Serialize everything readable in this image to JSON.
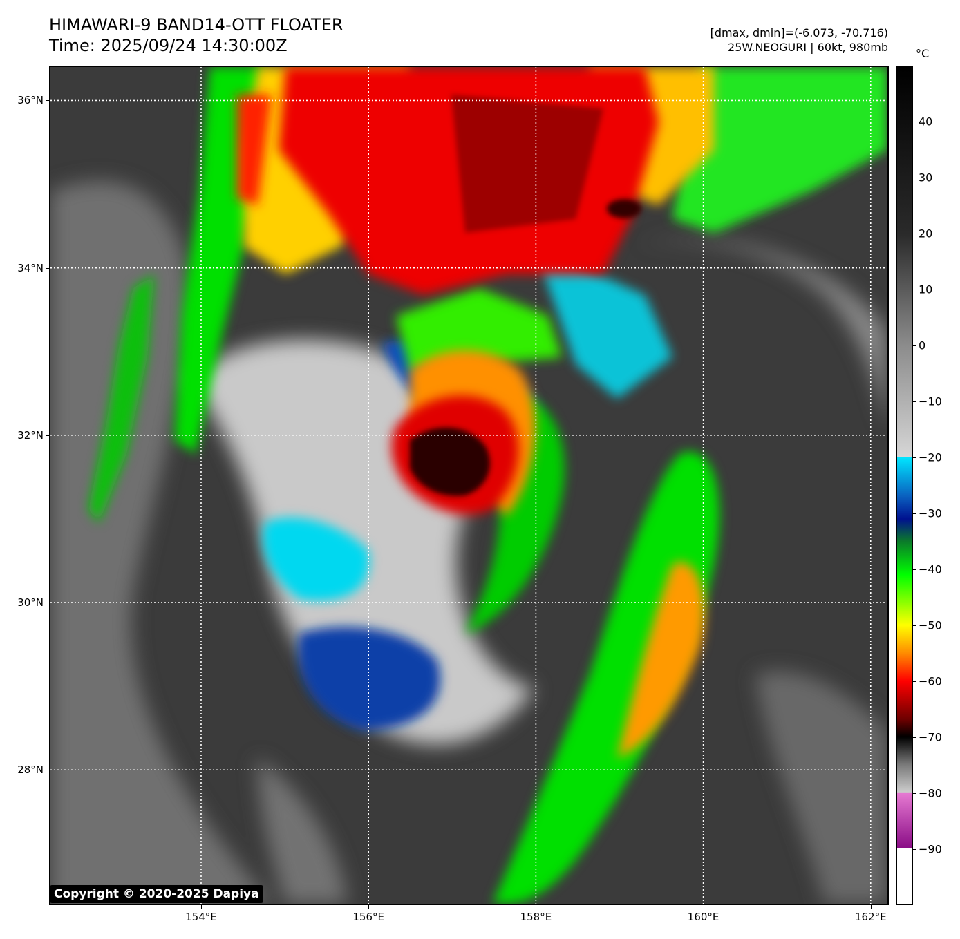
{
  "title_line1": "HIMAWARI-9 BAND14-OTT FLOATER",
  "title_line2": "Time: 2025/09/24 14:30:00Z",
  "meta_line1": "[dmax, dmin]=(-6.073, -70.716)",
  "meta_line2": "25W.NEOGURI | 60kt, 980mb",
  "copyright": "Copyright © 2020-2025 Dapiya",
  "map": {
    "lon_range": [
      152.2,
      162.2
    ],
    "lat_range": [
      26.4,
      36.4
    ],
    "lat_gridlines": [
      {
        "value": 36,
        "label": "36°N"
      },
      {
        "value": 34,
        "label": "34°N"
      },
      {
        "value": 32,
        "label": "32°N"
      },
      {
        "value": 30,
        "label": "30°N"
      },
      {
        "value": 28,
        "label": "28°N"
      }
    ],
    "lon_gridlines": [
      {
        "value": 154,
        "label": "154°E"
      },
      {
        "value": 156,
        "label": "156°E"
      },
      {
        "value": 158,
        "label": "158°E"
      },
      {
        "value": 160,
        "label": "160°E"
      },
      {
        "value": 162,
        "label": "162°E"
      }
    ],
    "storm_center": {
      "lon": 156.9,
      "lat": 31.7
    }
  },
  "colorbar": {
    "unit": "°C",
    "range": [
      -100,
      50
    ],
    "ticks": [
      {
        "value": 40,
        "label": "40"
      },
      {
        "value": 30,
        "label": "30"
      },
      {
        "value": 20,
        "label": "20"
      },
      {
        "value": 10,
        "label": "10"
      },
      {
        "value": 0,
        "label": "0"
      },
      {
        "value": -10,
        "label": "−10"
      },
      {
        "value": -20,
        "label": "−20"
      },
      {
        "value": -30,
        "label": "−30"
      },
      {
        "value": -40,
        "label": "−40"
      },
      {
        "value": -50,
        "label": "−50"
      },
      {
        "value": -60,
        "label": "−60"
      },
      {
        "value": -70,
        "label": "−70"
      },
      {
        "value": -80,
        "label": "−80"
      },
      {
        "value": -90,
        "label": "−90"
      }
    ],
    "stops": [
      {
        "value": 50,
        "color": "#000000"
      },
      {
        "value": 20,
        "color": "#2a2a2a"
      },
      {
        "value": 0,
        "color": "#8c8c8c"
      },
      {
        "value": -19.9,
        "color": "#d6d6d6"
      },
      {
        "value": -20,
        "color": "#00e5ff"
      },
      {
        "value": -27,
        "color": "#0a5fbf"
      },
      {
        "value": -31,
        "color": "#00118f"
      },
      {
        "value": -35,
        "color": "#0b7a2a"
      },
      {
        "value": -41,
        "color": "#00ff00"
      },
      {
        "value": -50,
        "color": "#ffff00"
      },
      {
        "value": -55,
        "color": "#ff8c00"
      },
      {
        "value": -60,
        "color": "#ff0000"
      },
      {
        "value": -67,
        "color": "#6a0000"
      },
      {
        "value": -70,
        "color": "#000000"
      },
      {
        "value": -75,
        "color": "#7a7a7a"
      },
      {
        "value": -79.9,
        "color": "#cccccc"
      },
      {
        "value": -80,
        "color": "#e67ad2"
      },
      {
        "value": -89.9,
        "color": "#8a0d86"
      },
      {
        "value": -90,
        "color": "#ffffff"
      },
      {
        "value": -100,
        "color": "#ffffff"
      }
    ]
  }
}
